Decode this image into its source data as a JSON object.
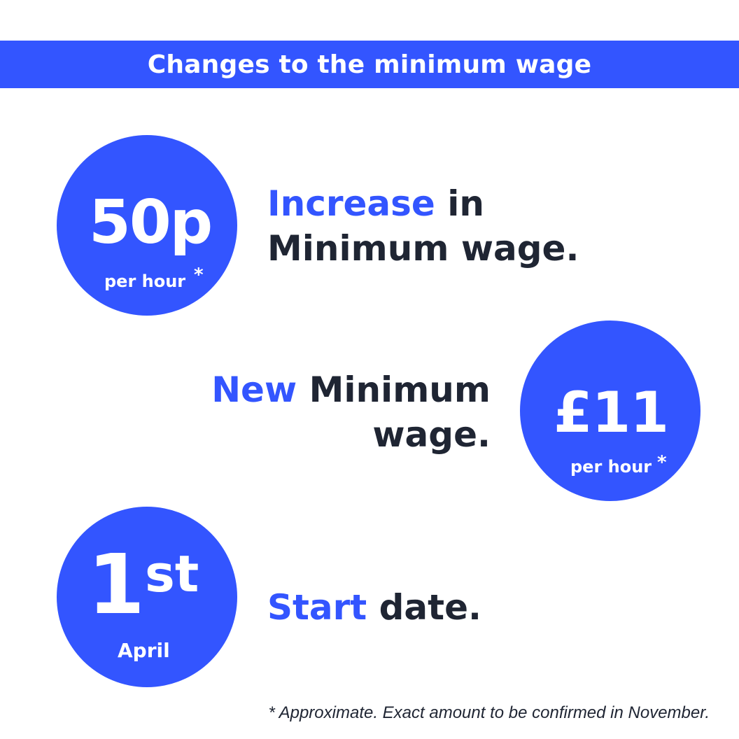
{
  "header": {
    "title": "Changes to the minimum wage"
  },
  "increase": {
    "amount": "50p",
    "unit": "per hour",
    "marker": "*",
    "highlight": "Increase",
    "text_rest": "in",
    "text_line2": "Minimum wage."
  },
  "new_wage": {
    "amount": "£11",
    "unit": "per hour",
    "marker": "*",
    "highlight": "New",
    "text_rest": "Minimum",
    "text_line2": "wage."
  },
  "start": {
    "day": "1",
    "suffix": "st",
    "month": "April",
    "highlight": "Start",
    "text_rest": "date."
  },
  "footnote": "* Approximate. Exact amount to be confirmed in November.",
  "colors": {
    "accent": "#3355ff",
    "text": "#1f2533",
    "background": "#ffffff"
  }
}
